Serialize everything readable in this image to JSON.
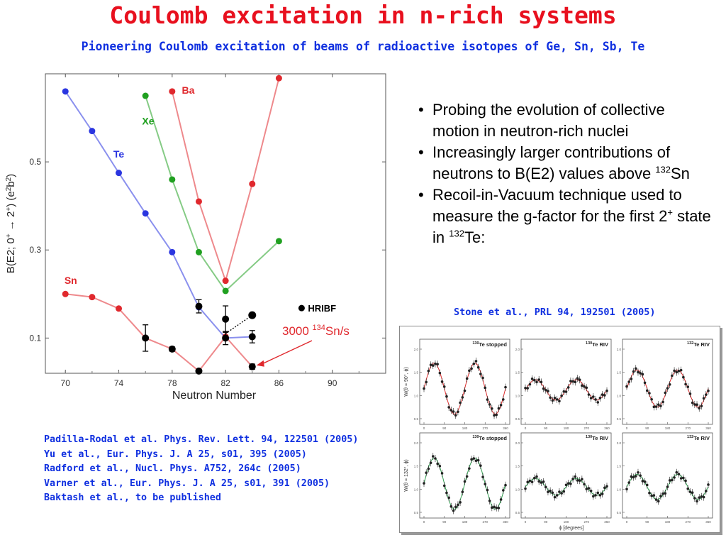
{
  "slide": {
    "title": "Coulomb excitation in n-rich systems",
    "subtitle": "Pioneering Coulomb excitation of beams of radioactive isotopes of Ge, Sn, Sb, Te",
    "bullets": [
      {
        "parts": [
          {
            "t": "Probing the evolution of collective motion in neutron-rich nuclei"
          }
        ]
      },
      {
        "parts": [
          {
            "t": "Increasingly larger contributions of neutrons to B(E2) values above "
          },
          {
            "sup": "132"
          },
          {
            "t": "Sn"
          }
        ]
      },
      {
        "parts": [
          {
            "t": "Recoil-in-Vacuum technique used to measure the g-factor for the first 2"
          },
          {
            "sup": "+"
          },
          {
            "t": " state in "
          },
          {
            "sup": "132"
          },
          {
            "t": "Te:"
          }
        ]
      }
    ],
    "citation": "Stone et al., PRL 94, 192501 (2005)",
    "references": [
      "Padilla-Rodal et al. Phys. Rev. Lett. 94, 122501 (2005)",
      "Yu et al., Eur. Phys. J. A 25, s01, 395 (2005)",
      "Radford et al., Nucl. Phys. A752, 264c (2005)",
      "Varner et al., Eur. Phys. J. A 25, s01, 391 (2005)",
      "Baktash et al., to be published"
    ]
  },
  "colors": {
    "title": "#e8101e",
    "blue_text": "#1030e0",
    "te": "#2a35e0",
    "xe": "#20a020",
    "ba": "#e0282d",
    "sn": "#e0282d",
    "hribf": "#000000"
  },
  "chart_data": [
    {
      "type": "line",
      "xlabel": "Neutron Number",
      "ylabel": "B(E2; 0+ → 2+)  (e2b2)",
      "xlim": [
        68.5,
        94
      ],
      "ylim": [
        0.02,
        0.7
      ],
      "xticks": [
        70,
        74,
        78,
        82,
        86,
        90
      ],
      "yticks": [
        0.1,
        0.3,
        0.5
      ],
      "series": [
        {
          "name": "Te",
          "color": "#2a35e0",
          "x": [
            70,
            72,
            74,
            76,
            78,
            80,
            82,
            84
          ],
          "y": [
            0.66,
            0.57,
            0.475,
            0.383,
            0.295,
            0.17,
            0.1,
            0.103
          ]
        },
        {
          "name": "Xe",
          "color": "#20a020",
          "x": [
            76,
            78,
            80,
            82,
            86
          ],
          "y": [
            0.65,
            0.46,
            0.295,
            0.207,
            0.32
          ]
        },
        {
          "name": "Ba",
          "color": "#e0282d",
          "x": [
            78,
            80,
            82,
            84,
            86
          ],
          "y": [
            0.66,
            0.41,
            0.23,
            0.45,
            0.69
          ]
        },
        {
          "name": "Sn",
          "color": "#e0282d",
          "x": [
            70,
            72,
            74,
            76,
            78,
            80,
            82,
            84
          ],
          "y": [
            0.2,
            0.193,
            0.167,
            0.1,
            0.075,
            0.025,
            0.103,
            0.035
          ]
        },
        {
          "name": "HRIBF",
          "color": "#000000",
          "x": [
            76,
            78,
            80,
            80,
            82,
            82,
            84,
            84
          ],
          "y": [
            0.1,
            0.075,
            0.025,
            0.172,
            0.143,
            0.1,
            0.035,
            0.103
          ],
          "err": [
            0.03,
            0.005,
            0.004,
            0.015,
            0.03,
            0.015,
            0.006,
            0.014
          ]
        }
      ],
      "extra_points": [
        {
          "x": 84,
          "y": 0.152,
          "color": "#000000"
        }
      ],
      "legend": {
        "label": "HRIBF",
        "position": "right"
      },
      "annotation": {
        "pre": "3000 ",
        "sup": "134",
        "post": "Sn/s",
        "color": "#e0282d",
        "target": [
          84,
          0.035
        ]
      }
    },
    {
      "type": "scatter",
      "xlabel": "ϕ [degrees]",
      "row_labels": [
        "W(θ = 90°, ϕ)",
        "W(θ = 132°, ϕ)"
      ],
      "panel_titles": [
        {
          "sup": "130",
          "text": "Te stopped"
        },
        {
          "sup": "130",
          "text": "Te RIV"
        },
        {
          "sup": "132",
          "text": "Te RIV"
        },
        {
          "sup": "130",
          "text": "Te stopped"
        },
        {
          "sup": "130",
          "text": "Te RIV"
        },
        {
          "sup": "132",
          "text": "Te RIV"
        }
      ],
      "xticks": [
        0,
        90,
        180,
        270,
        360
      ],
      "ytick_labels": [
        "0.5",
        "1.0",
        "1.5",
        "2.0"
      ],
      "ylim": [
        0.5,
        2.0
      ],
      "curve_colors": [
        "#e03030",
        "#e03030",
        "#e03030",
        "#30a050",
        "#30a050",
        "#30a050"
      ],
      "amplitudes": [
        0.55,
        0.22,
        0.4,
        0.55,
        0.18,
        0.27
      ],
      "phases": [
        0,
        0,
        0,
        180,
        180,
        180
      ],
      "offsets": [
        1.15,
        1.12,
        1.15,
        1.12,
        1.05,
        1.05
      ],
      "periods": [
        180,
        180,
        180,
        180,
        180,
        180
      ]
    }
  ]
}
